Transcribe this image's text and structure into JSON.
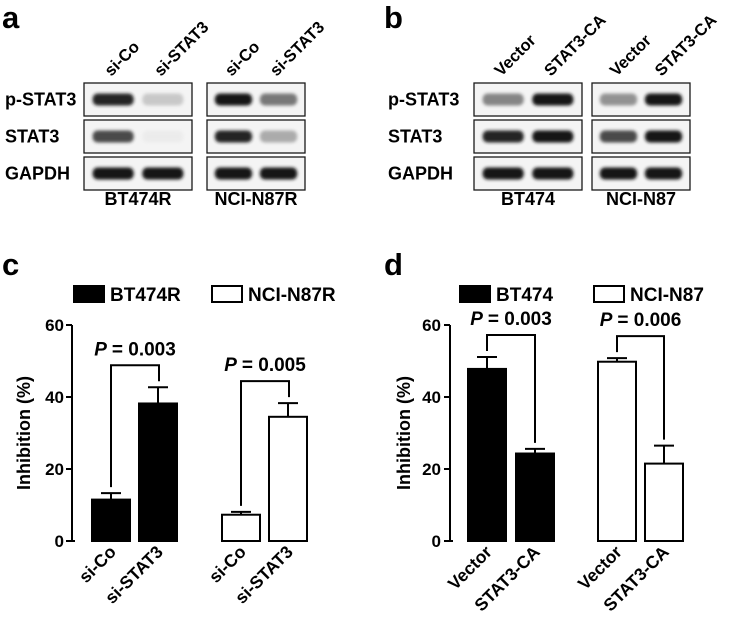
{
  "panels": [
    {
      "label": "a"
    },
    {
      "label": "b"
    },
    {
      "label": "c"
    },
    {
      "label": "d"
    }
  ],
  "blots": [
    {
      "panel": "a",
      "row_labels": [
        "p-STAT3",
        "STAT3",
        "GAPDH"
      ],
      "groups": [
        {
          "name": "BT474R",
          "lanes": [
            "si-Co",
            "si-STAT3"
          ],
          "bands": [
            [
              0.95,
              0.35
            ],
            [
              0.85,
              0.08
            ],
            [
              1.0,
              1.0
            ]
          ]
        },
        {
          "name": "NCI-N87R",
          "lanes": [
            "si-Co",
            "si-STAT3"
          ],
          "bands": [
            [
              1.0,
              0.7
            ],
            [
              0.95,
              0.5
            ],
            [
              1.0,
              1.0
            ]
          ]
        }
      ]
    },
    {
      "panel": "b",
      "row_labels": [
        "p-STAT3",
        "STAT3",
        "GAPDH"
      ],
      "groups": [
        {
          "name": "BT474",
          "lanes": [
            "Vector",
            "STAT3-CA"
          ],
          "bands": [
            [
              0.65,
              1.0
            ],
            [
              0.95,
              1.0
            ],
            [
              1.0,
              1.0
            ]
          ]
        },
        {
          "name": "NCI-N87",
          "lanes": [
            "Vector",
            "STAT3-CA"
          ],
          "bands": [
            [
              0.6,
              1.0
            ],
            [
              0.85,
              1.0
            ],
            [
              1.0,
              1.0
            ]
          ]
        }
      ]
    }
  ],
  "chart_data": [
    {
      "panel": "c",
      "type": "bar",
      "xlabel": "",
      "ylabel": "Inhibition (%)",
      "ylim": [
        0,
        60
      ],
      "yticks": [
        "0",
        "20",
        "40",
        "60"
      ],
      "legend_position": "top",
      "series": [
        {
          "name": "BT474R",
          "fill": "#000000",
          "categories": [
            "si-Co",
            "si-STAT3"
          ],
          "values": [
            11.5,
            38.2
          ],
          "errors": [
            1.8,
            4.5
          ],
          "comparison": {
            "p_label": "P",
            "p_value": "= 0.003"
          }
        },
        {
          "name": "NCI-N87R",
          "fill": "#ffffff",
          "categories": [
            "si-Co",
            "si-STAT3"
          ],
          "values": [
            7.3,
            34.5
          ],
          "errors": [
            0.8,
            3.8
          ],
          "comparison": {
            "p_label": "P",
            "p_value": "= 0.005"
          }
        }
      ]
    },
    {
      "panel": "d",
      "type": "bar",
      "xlabel": "",
      "ylabel": "Inhibition (%)",
      "ylim": [
        0,
        60
      ],
      "yticks": [
        "0",
        "20",
        "40",
        "60"
      ],
      "legend_position": "top",
      "series": [
        {
          "name": "BT474",
          "fill": "#000000",
          "categories": [
            "Vector",
            "STAT3-CA"
          ],
          "values": [
            47.8,
            24.3
          ],
          "errors": [
            3.3,
            1.3
          ],
          "comparison": {
            "p_label": "P",
            "p_value": "= 0.003"
          }
        },
        {
          "name": "NCI-N87",
          "fill": "#ffffff",
          "categories": [
            "Vector",
            "STAT3-CA"
          ],
          "values": [
            49.8,
            21.5
          ],
          "errors": [
            1.0,
            5.0
          ],
          "comparison": {
            "p_label": "P",
            "p_value": "= 0.006"
          }
        }
      ]
    }
  ]
}
